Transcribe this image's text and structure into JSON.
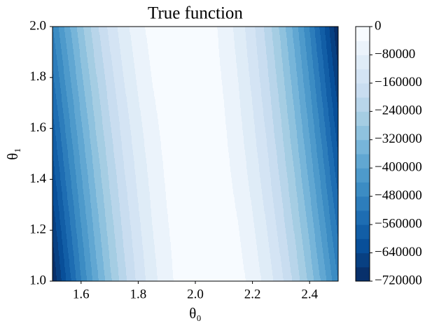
{
  "chart_data": {
    "type": "contourf",
    "title": "True function",
    "xlabel": "θ₀",
    "ylabel": "θ₁",
    "x": [
      1.5,
      1.55,
      1.6,
      1.65,
      1.7,
      1.75,
      1.8,
      1.85,
      1.9,
      1.95,
      2.0,
      2.05,
      2.1,
      2.15,
      2.2,
      2.25,
      2.3,
      2.35,
      2.4,
      2.45,
      2.5
    ],
    "y": [
      1.0,
      2.0
    ],
    "z": [
      [
        -720000,
        -595000,
        -482000,
        -381000,
        -292000,
        -214000,
        -149000,
        -95000,
        -54000,
        -24000,
        -6000,
        0,
        -6000,
        -24000,
        -54000,
        -95000,
        -149000,
        -214000,
        -292000,
        -381000,
        -482000
      ],
      [
        -482000,
        -381000,
        -292000,
        -214000,
        -149000,
        -95000,
        -54000,
        -24000,
        -6000,
        0,
        -6000,
        -24000,
        -54000,
        -95000,
        -149000,
        -214000,
        -292000,
        -381000,
        -482000,
        -595000,
        -720000
      ]
    ],
    "levels": [
      -720000,
      -680000,
      -640000,
      -600000,
      -560000,
      -520000,
      -480000,
      -440000,
      -400000,
      -360000,
      -320000,
      -280000,
      -240000,
      -200000,
      -160000,
      -120000,
      -80000,
      -40000,
      0
    ],
    "colormap_colors": [
      "#08306b",
      "#08519c",
      "#2171b5",
      "#4292c6",
      "#6baed6",
      "#9ecae1",
      "#c6dbef",
      "#deebf7",
      "#f7fbff"
    ],
    "xlim": [
      1.5,
      2.5
    ],
    "ylim": [
      1.0,
      2.0
    ],
    "xticks": [
      1.6,
      1.8,
      {
        "value": 2.0,
        "label": "2.0"
      },
      2.2,
      2.4
    ],
    "yticks": [
      {
        "value": 1.0,
        "label": "1.0"
      },
      1.2,
      1.4,
      1.6,
      1.8,
      {
        "value": 2.0,
        "label": "2.0"
      }
    ],
    "colorbar_lim": [
      -720000,
      0
    ],
    "colorbar_ticks": [
      0,
      {
        "value": -80000,
        "label": "−80000"
      },
      {
        "value": -160000,
        "label": "−160000"
      },
      {
        "value": -240000,
        "label": "−240000"
      },
      {
        "value": -320000,
        "label": "−320000"
      },
      {
        "value": -400000,
        "label": "−400000"
      },
      {
        "value": -480000,
        "label": "−480000"
      },
      {
        "value": -560000,
        "label": "−560000"
      },
      {
        "value": -640000,
        "label": "−640000"
      },
      {
        "value": -720000,
        "label": "−720000"
      }
    ]
  }
}
